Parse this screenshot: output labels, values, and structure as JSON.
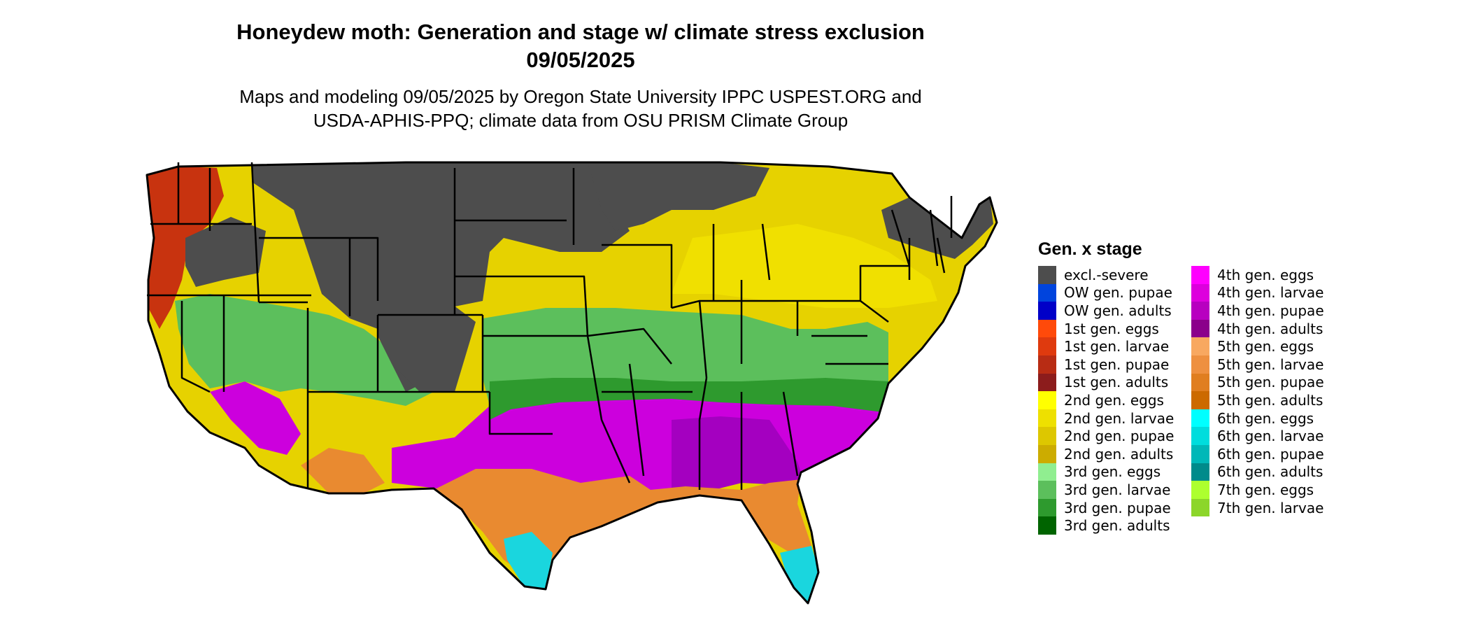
{
  "header": {
    "title_line1": "Honeydew moth: Generation and stage w/ climate stress exclusion",
    "title_line2": "09/05/2025",
    "subtitle_line1": "Maps and modeling 09/05/2025 by Oregon State University IPPC USPEST.ORG and",
    "subtitle_line2": "USDA-APHIS-PPQ; climate data from OSU PRISM Climate Group"
  },
  "colors": {
    "excl": "#4d4d4d",
    "gen1": "#c8330f",
    "gen2": "#e6d200",
    "gen2b": "#f0e000",
    "gen3": "#5cbf5c",
    "gen3b": "#2e9a2e",
    "gen4": "#cc00dd",
    "gen4b": "#a400c0",
    "gen5": "#e98a30",
    "gen6": "#1ad6de",
    "gen7": "#8fe02a",
    "border": "#000000"
  },
  "legend": {
    "title": "Gen. x stage",
    "columns": [
      [
        {
          "label": "excl.-severe",
          "color": "#4d4d4d"
        },
        {
          "label": "OW gen. pupae",
          "color": "#0044dd"
        },
        {
          "label": "OW gen. adults",
          "color": "#0000c8"
        },
        {
          "label": "1st gen. eggs",
          "color": "#ff4a0a"
        },
        {
          "label": "1st gen. larvae",
          "color": "#df3a0e"
        },
        {
          "label": "1st gen. pupae",
          "color": "#b82c14"
        },
        {
          "label": "1st gen. adults",
          "color": "#8c1c1c"
        },
        {
          "label": "2nd gen. eggs",
          "color": "#ffff00"
        },
        {
          "label": "2nd gen. larvae",
          "color": "#eee000"
        },
        {
          "label": "2nd gen. pupae",
          "color": "#ddc700"
        },
        {
          "label": "2nd gen. adults",
          "color": "#ccac00"
        },
        {
          "label": "3rd gen. eggs",
          "color": "#90ee90"
        },
        {
          "label": "3rd gen. larvae",
          "color": "#5cbf5c"
        },
        {
          "label": "3rd gen. pupae",
          "color": "#2e9a2e"
        },
        {
          "label": "3rd gen. adults",
          "color": "#006400"
        }
      ],
      [
        {
          "label": "4th gen. eggs",
          "color": "#ff00ff"
        },
        {
          "label": "4th gen. larvae",
          "color": "#dd00dd"
        },
        {
          "label": "4th gen. pupae",
          "color": "#b800c0"
        },
        {
          "label": "4th gen. adults",
          "color": "#8b008b"
        },
        {
          "label": "5th gen. eggs",
          "color": "#f8a860"
        },
        {
          "label": "5th gen. larvae",
          "color": "#ee9040"
        },
        {
          "label": "5th gen. pupae",
          "color": "#e07e20"
        },
        {
          "label": "5th gen. adults",
          "color": "#cc6a00"
        },
        {
          "label": "6th gen. eggs",
          "color": "#00ffff"
        },
        {
          "label": "6th gen. larvae",
          "color": "#00dddd"
        },
        {
          "label": "6th gen. pupae",
          "color": "#00b8b8"
        },
        {
          "label": "6th gen. adults",
          "color": "#008b8b"
        },
        {
          "label": "7th gen. eggs",
          "color": "#adff2f"
        },
        {
          "label": "7th gen. larvae",
          "color": "#8cd62a"
        }
      ]
    ]
  }
}
